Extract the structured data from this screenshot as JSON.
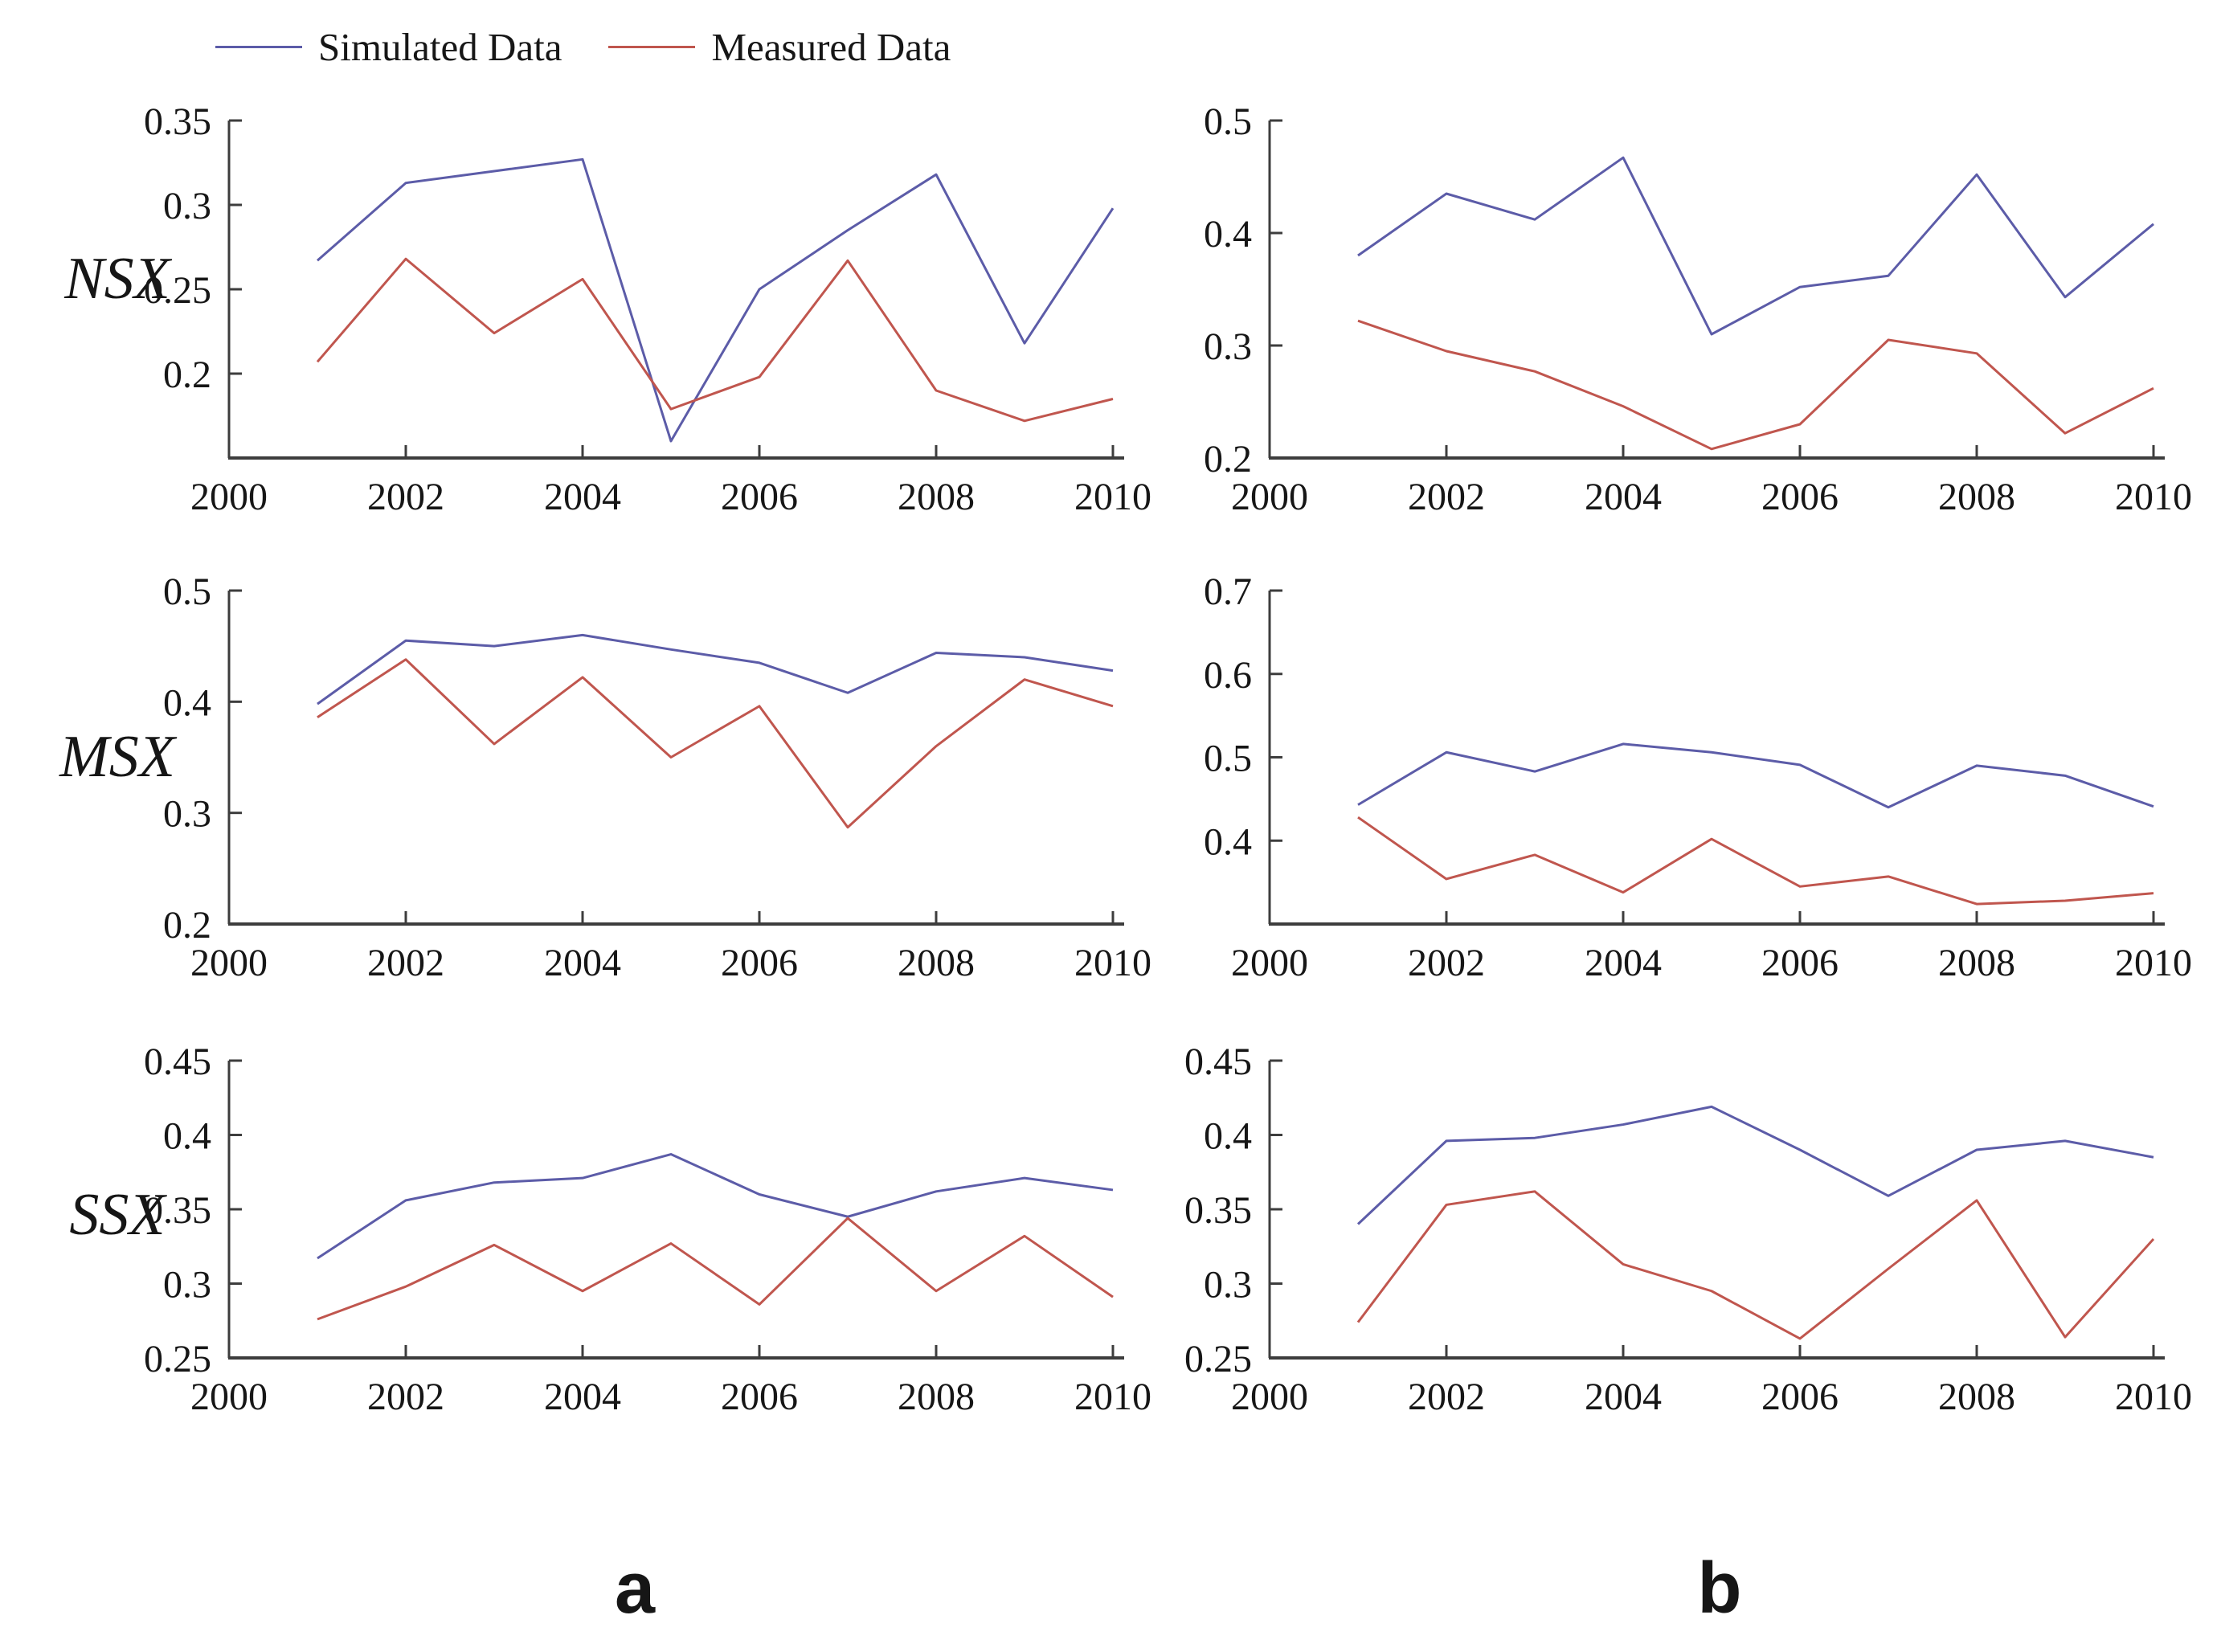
{
  "legend": {
    "items": [
      {
        "label": "Simulated Data",
        "key": "simulated"
      },
      {
        "label": "Measured Data",
        "key": "measured"
      }
    ]
  },
  "row_labels": [
    "NSX",
    "MSX",
    "SSX"
  ],
  "column_labels": [
    "a",
    "b"
  ],
  "colors": {
    "simulated": "#5c5ca8",
    "measured": "#c0564e",
    "axis": "#3d3d3d",
    "text": "#161616"
  },
  "chart_data": [
    {
      "id": "nsx-a",
      "row": "NSX",
      "col": "a",
      "type": "line",
      "x": [
        2001,
        2002,
        2003,
        2004,
        2005,
        2006,
        2007,
        2008,
        2009,
        2010
      ],
      "xlim": [
        2000,
        2010
      ],
      "xticks": [
        2000,
        2002,
        2004,
        2006,
        2008,
        2010
      ],
      "ylim": [
        0.15,
        0.35
      ],
      "yticks": [
        "0.2",
        "0.25",
        "0.3",
        "0.35"
      ],
      "grid": false,
      "legend_position": "top",
      "series": [
        {
          "name": "Simulated Data",
          "key": "simulated",
          "values": [
            0.267,
            0.313,
            0.32,
            0.327,
            0.16,
            0.25,
            0.285,
            0.318,
            0.218,
            0.298
          ]
        },
        {
          "name": "Measured Data",
          "key": "measured",
          "values": [
            0.207,
            0.268,
            0.224,
            0.256,
            0.179,
            0.198,
            0.267,
            0.19,
            0.172,
            0.185
          ]
        }
      ]
    },
    {
      "id": "nsx-b",
      "row": "NSX",
      "col": "b",
      "type": "line",
      "x": [
        2001,
        2002,
        2003,
        2004,
        2005,
        2006,
        2007,
        2008,
        2009,
        2010
      ],
      "xlim": [
        2000,
        2010
      ],
      "xticks": [
        2000,
        2002,
        2004,
        2006,
        2008,
        2010
      ],
      "ylim": [
        0.2,
        0.5
      ],
      "yticks": [
        "0.2",
        "0.3",
        "0.4",
        "0.5"
      ],
      "grid": false,
      "series": [
        {
          "name": "Simulated Data",
          "key": "simulated",
          "values": [
            0.38,
            0.435,
            0.412,
            0.467,
            0.31,
            0.352,
            0.362,
            0.452,
            0.343,
            0.408
          ]
        },
        {
          "name": "Measured Data",
          "key": "measured",
          "values": [
            0.322,
            0.295,
            0.277,
            0.246,
            0.208,
            0.23,
            0.305,
            0.293,
            0.222,
            0.262
          ]
        }
      ]
    },
    {
      "id": "msx-a",
      "row": "MSX",
      "col": "a",
      "type": "line",
      "x": [
        2001,
        2002,
        2003,
        2004,
        2005,
        2006,
        2007,
        2008,
        2009,
        2010
      ],
      "xlim": [
        2000,
        2010
      ],
      "xticks": [
        2000,
        2002,
        2004,
        2006,
        2008,
        2010
      ],
      "ylim": [
        0.2,
        0.5
      ],
      "yticks": [
        "0.2",
        "0.3",
        "0.4",
        "0.5"
      ],
      "grid": false,
      "series": [
        {
          "name": "Simulated Data",
          "key": "simulated",
          "values": [
            0.398,
            0.455,
            0.45,
            0.46,
            0.447,
            0.435,
            0.408,
            0.444,
            0.44,
            0.428
          ]
        },
        {
          "name": "Measured Data",
          "key": "measured",
          "values": [
            0.386,
            0.438,
            0.362,
            0.422,
            0.35,
            0.396,
            0.287,
            0.36,
            0.42,
            0.396
          ]
        }
      ]
    },
    {
      "id": "msx-b",
      "row": "MSX",
      "col": "b",
      "type": "line",
      "x": [
        2001,
        2002,
        2003,
        2004,
        2005,
        2006,
        2007,
        2008,
        2009,
        2010
      ],
      "xlim": [
        2000,
        2010
      ],
      "xticks": [
        2000,
        2002,
        2004,
        2006,
        2008,
        2010
      ],
      "ylim": [
        0.3,
        0.7
      ],
      "yticks": [
        "0.4",
        "0.5",
        "0.6",
        "0.7"
      ],
      "grid": false,
      "series": [
        {
          "name": "Simulated Data",
          "key": "simulated",
          "values": [
            0.443,
            0.506,
            0.483,
            0.516,
            0.506,
            0.491,
            0.44,
            0.49,
            0.478,
            0.441
          ]
        },
        {
          "name": "Measured Data",
          "key": "measured",
          "values": [
            0.428,
            0.354,
            0.383,
            0.338,
            0.402,
            0.345,
            0.357,
            0.324,
            0.328,
            0.337
          ]
        }
      ]
    },
    {
      "id": "ssx-a",
      "row": "SSX",
      "col": "a",
      "type": "line",
      "x": [
        2001,
        2002,
        2003,
        2004,
        2005,
        2006,
        2007,
        2008,
        2009,
        2010
      ],
      "xlim": [
        2000,
        2010
      ],
      "xticks": [
        2000,
        2002,
        2004,
        2006,
        2008,
        2010
      ],
      "ylim": [
        0.25,
        0.45
      ],
      "yticks": [
        "0.25",
        "0.3",
        "0.35",
        "0.4",
        "0.45"
      ],
      "grid": false,
      "series": [
        {
          "name": "Simulated Data",
          "key": "simulated",
          "values": [
            0.317,
            0.356,
            0.368,
            0.371,
            0.387,
            0.36,
            0.345,
            0.362,
            0.371,
            0.363
          ]
        },
        {
          "name": "Measured Data",
          "key": "measured",
          "values": [
            0.276,
            0.298,
            0.326,
            0.295,
            0.327,
            0.286,
            0.344,
            0.295,
            0.332,
            0.291
          ]
        }
      ]
    },
    {
      "id": "ssx-b",
      "row": "SSX",
      "col": "b",
      "type": "line",
      "x": [
        2001,
        2002,
        2003,
        2004,
        2005,
        2006,
        2007,
        2008,
        2009,
        2010
      ],
      "xlim": [
        2000,
        2010
      ],
      "xticks": [
        2000,
        2002,
        2004,
        2006,
        2008,
        2010
      ],
      "ylim": [
        0.25,
        0.45
      ],
      "yticks": [
        "0.25",
        "0.3",
        "0.35",
        "0.4",
        "0.45"
      ],
      "grid": false,
      "series": [
        {
          "name": "Simulated Data",
          "key": "simulated",
          "values": [
            0.34,
            0.396,
            0.398,
            0.407,
            0.419,
            0.39,
            0.359,
            0.39,
            0.396,
            0.385
          ]
        },
        {
          "name": "Measured Data",
          "key": "measured",
          "values": [
            0.274,
            0.353,
            0.362,
            0.313,
            0.295,
            0.263,
            0.31,
            0.356,
            0.264,
            0.33
          ]
        }
      ]
    }
  ]
}
